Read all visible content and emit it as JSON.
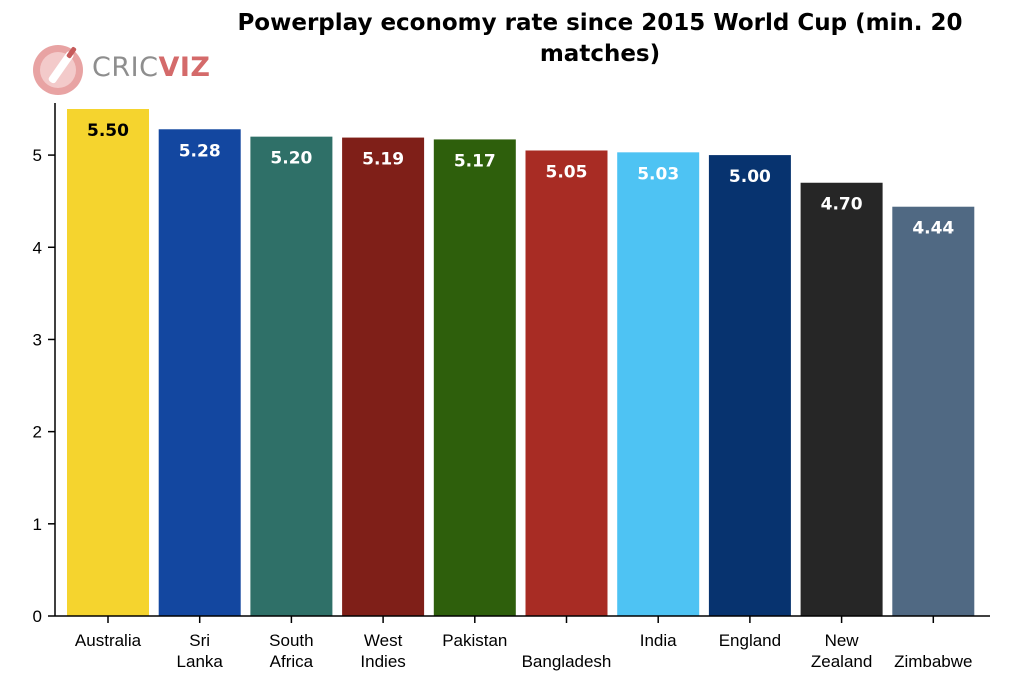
{
  "brand": {
    "logo_part1": "CRIC",
    "logo_part2": "VIZ"
  },
  "chart_data": {
    "type": "bar",
    "title": "Powerplay economy rate since 2015 World Cup (min. 20 matches)",
    "xlabel": "",
    "ylabel": "",
    "ylim": [
      0,
      5.5
    ],
    "yticks": [
      0,
      1,
      2,
      3,
      4,
      5
    ],
    "grid": false,
    "categories": [
      "Australia",
      "Sri Lanka",
      "South Africa",
      "West Indies",
      "Pakistan",
      "Bangladesh",
      "India",
      "England",
      "New Zealand",
      "Zimbabwe"
    ],
    "category_label_lines": [
      [
        "Australia"
      ],
      [
        "Sri",
        "Lanka"
      ],
      [
        "South",
        "Africa"
      ],
      [
        "West",
        "Indies"
      ],
      [
        "Pakistan"
      ],
      [
        "",
        "Bangladesh"
      ],
      [
        "India"
      ],
      [
        "England"
      ],
      [
        "New",
        "Zealand"
      ],
      [
        "",
        "Zimbabwe"
      ]
    ],
    "values": [
      5.5,
      5.28,
      5.2,
      5.19,
      5.17,
      5.05,
      5.03,
      5.0,
      4.7,
      4.44
    ],
    "data_labels": [
      "5.50",
      "5.28",
      "5.20",
      "5.19",
      "5.17",
      "5.05",
      "5.03",
      "5.00",
      "4.70",
      "4.44"
    ],
    "bar_colors": [
      "#f5d42e",
      "#1347a0",
      "#2f7068",
      "#7f1f18",
      "#2e5f0c",
      "#a82c24",
      "#4ec3f3",
      "#07336f",
      "#262626",
      "#506983"
    ],
    "label_colors": [
      "#000000",
      "#ffffff",
      "#ffffff",
      "#ffffff",
      "#ffffff",
      "#ffffff",
      "#ffffff",
      "#ffffff",
      "#ffffff",
      "#ffffff"
    ]
  }
}
